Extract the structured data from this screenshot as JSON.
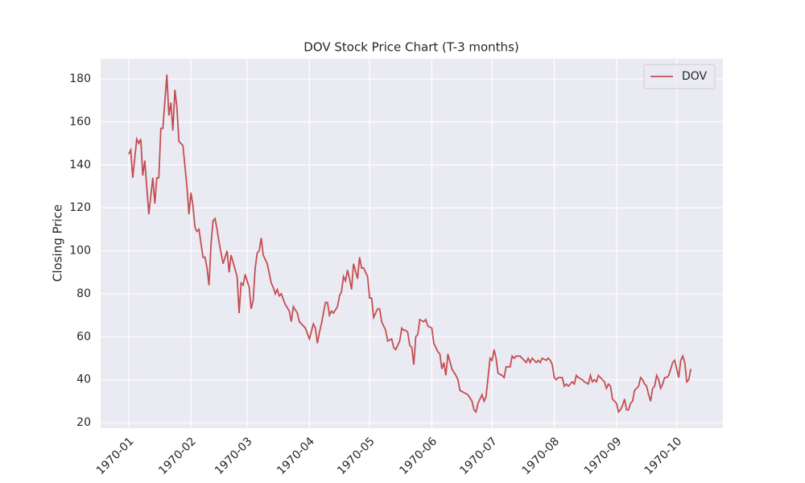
{
  "chart_data": {
    "type": "line",
    "title": "DOV Stock Price Chart (T-3 months)",
    "ylabel": "Closing Price",
    "x": [
      0,
      1,
      2,
      4,
      5,
      6,
      7,
      8,
      10,
      12,
      13,
      14,
      15,
      16,
      17,
      19,
      20,
      21,
      22,
      23,
      24,
      25,
      27,
      29,
      30,
      31,
      32,
      33,
      34,
      35,
      37,
      38,
      39,
      40,
      41,
      42,
      43,
      44,
      45,
      47,
      48,
      49,
      50,
      51,
      54,
      55,
      56,
      57,
      58,
      60,
      61,
      62,
      63,
      64,
      65,
      66,
      67,
      69,
      71,
      72,
      73,
      74,
      75,
      76,
      78,
      80,
      81,
      82,
      84,
      85,
      88,
      90,
      92,
      93,
      94,
      95,
      96,
      98,
      99,
      100,
      101,
      102,
      104,
      105,
      106,
      107,
      108,
      109,
      110,
      111,
      112,
      114,
      115,
      116,
      117,
      119,
      120,
      121,
      122,
      124,
      125,
      126,
      128,
      129,
      131,
      132,
      133,
      135,
      136,
      137,
      138,
      139,
      140,
      141,
      142,
      143,
      144,
      145,
      147,
      148,
      149,
      151,
      152,
      154,
      155,
      156,
      157,
      158,
      159,
      161,
      163,
      164,
      165,
      167,
      169,
      171,
      172,
      173,
      174,
      176,
      177,
      178,
      180,
      181,
      182,
      183,
      184,
      186,
      187,
      188,
      190,
      191,
      192,
      193,
      195,
      196,
      197,
      198,
      199,
      200,
      201,
      203,
      204,
      205,
      206,
      208,
      209,
      210,
      211,
      212,
      213,
      214,
      216,
      217,
      218,
      219,
      220,
      221,
      222,
      223,
      224,
      226,
      227,
      229,
      230,
      231,
      232,
      233,
      234,
      236,
      237,
      238,
      239,
      240,
      241,
      242,
      243,
      244,
      245,
      246,
      247,
      248,
      249,
      250,
      251,
      252,
      253,
      254,
      255,
      256,
      257,
      258,
      259,
      260,
      261,
      262,
      263,
      264,
      265,
      266,
      267,
      268,
      269,
      270,
      271,
      272,
      273,
      274,
      275,
      276,
      277,
      278,
      279,
      280
    ],
    "series": [
      {
        "name": "DOV",
        "color": "#c44e52",
        "values": [
          145,
          147,
          134,
          152,
          150,
          152,
          135,
          142,
          117,
          134,
          122,
          134,
          134,
          157,
          157,
          182,
          163,
          169,
          156,
          175,
          167,
          151,
          149,
          130,
          117,
          127,
          121,
          111,
          109,
          110,
          97,
          97,
          92,
          84,
          103,
          114,
          115,
          110,
          104,
          94,
          97,
          100,
          90,
          98,
          88,
          71,
          85,
          84,
          89,
          83,
          73,
          77,
          92,
          99,
          100,
          106,
          98,
          94,
          85,
          83,
          80,
          82,
          79,
          80,
          75,
          72,
          67,
          74,
          71,
          67,
          64,
          59,
          66,
          64,
          57,
          62,
          66,
          76,
          76,
          70,
          72,
          71,
          74,
          79,
          81,
          88,
          86,
          91,
          87,
          82,
          94,
          87,
          97,
          92,
          92,
          88,
          78,
          78,
          69,
          73,
          73,
          67,
          63,
          58,
          59,
          55,
          54,
          58,
          64,
          63,
          63,
          62,
          56,
          55,
          47,
          60,
          61,
          68,
          67,
          68,
          65,
          64,
          57,
          53,
          52,
          45,
          48,
          42,
          52,
          45,
          42,
          40,
          35,
          34,
          33,
          30,
          26,
          25,
          29,
          33,
          30,
          32,
          50,
          49,
          54,
          50,
          43,
          42,
          41,
          46,
          46,
          51,
          50,
          51,
          51,
          50,
          49,
          48,
          50,
          48,
          50,
          48,
          49,
          48,
          50,
          49,
          50,
          49,
          47,
          41,
          40,
          41,
          41,
          37,
          38,
          37,
          38,
          39,
          38,
          42,
          41,
          40,
          39,
          38,
          42,
          39,
          40,
          39,
          42,
          40,
          39,
          36,
          38,
          37,
          31,
          30,
          29,
          25,
          26,
          28,
          31,
          26,
          26,
          29,
          30,
          35,
          36,
          37,
          41,
          40,
          38,
          37,
          33,
          30,
          36,
          37,
          42,
          40,
          36,
          38,
          41,
          41,
          42,
          45,
          48,
          49,
          45,
          41,
          49,
          51,
          48,
          39,
          40,
          45
        ]
      }
    ],
    "xlim": [
      -14,
      296
    ],
    "ylim": [
      17.4,
      189.4
    ],
    "xticks": [
      {
        "value": 0,
        "label": "1970-01"
      },
      {
        "value": 31,
        "label": "1970-02"
      },
      {
        "value": 59,
        "label": "1970-03"
      },
      {
        "value": 90,
        "label": "1970-04"
      },
      {
        "value": 120,
        "label": "1970-05"
      },
      {
        "value": 151,
        "label": "1970-06"
      },
      {
        "value": 181,
        "label": "1970-07"
      },
      {
        "value": 212,
        "label": "1970-08"
      },
      {
        "value": 243,
        "label": "1970-09"
      },
      {
        "value": 273,
        "label": "1970-10"
      }
    ],
    "yticks": [
      20,
      40,
      60,
      80,
      100,
      120,
      140,
      160,
      180
    ],
    "grid": true,
    "legend": "upper right"
  }
}
